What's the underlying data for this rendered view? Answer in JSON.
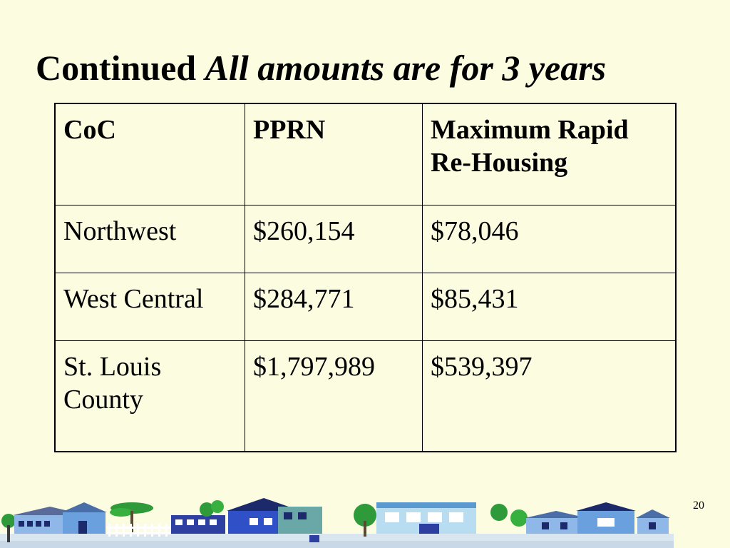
{
  "slide": {
    "title_main": "Continued",
    "title_italic": "All amounts are for 3 years",
    "page_number": "20"
  },
  "table": {
    "headers": [
      "CoC",
      "PPRN",
      "Maximum Rapid Re-Housing"
    ],
    "rows": [
      [
        "Northwest",
        "$260,154",
        "$78,046"
      ],
      [
        "West Central",
        "$284,771",
        "$85,431"
      ],
      [
        "St. Louis County",
        "$1,797,989",
        "$539,397"
      ]
    ]
  },
  "colors": {
    "background": "#fcfce0",
    "text": "#000000"
  },
  "decoration": "town-skyline-clipart"
}
